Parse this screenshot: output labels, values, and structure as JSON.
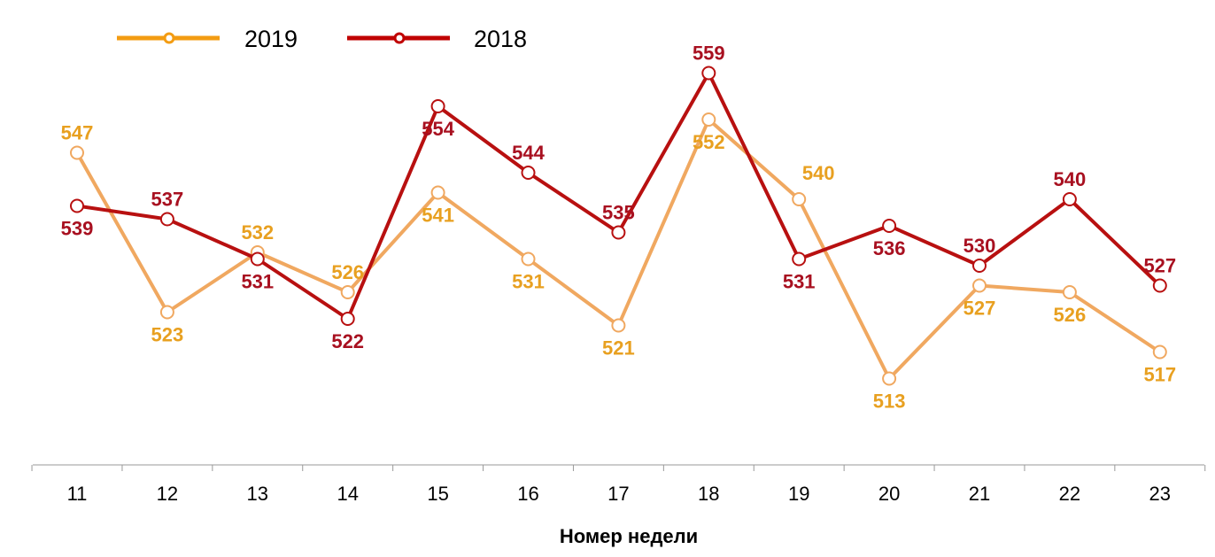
{
  "chart_data": {
    "type": "line",
    "title": "",
    "xlabel": "Номер недели",
    "ylabel": "",
    "categories": [
      "11",
      "12",
      "13",
      "14",
      "15",
      "16",
      "17",
      "18",
      "19",
      "20",
      "21",
      "22",
      "23"
    ],
    "ylim": [
      500,
      570
    ],
    "grid": false,
    "legend_placement": "top-left",
    "series": [
      {
        "name": "2019",
        "color": "#F39C12",
        "line_color": "#F0A860",
        "label_color": "#E8A020",
        "values": [
          547,
          523,
          532,
          526,
          541,
          531,
          521,
          552,
          540,
          513,
          527,
          526,
          517
        ]
      },
      {
        "name": "2018",
        "color": "#C00000",
        "line_color": "#B81010",
        "label_color": "#A81020",
        "values": [
          539,
          537,
          531,
          522,
          554,
          544,
          535,
          559,
          531,
          536,
          530,
          540,
          527
        ]
      }
    ]
  }
}
